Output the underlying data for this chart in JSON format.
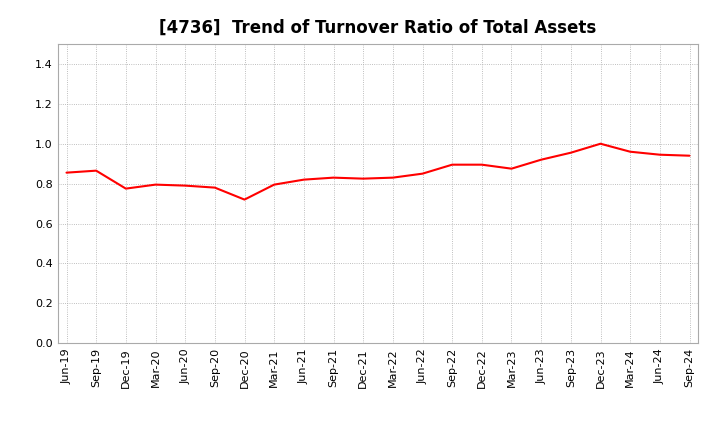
{
  "title": "[4736]  Trend of Turnover Ratio of Total Assets",
  "labels": [
    "Jun-19",
    "Sep-19",
    "Dec-19",
    "Mar-20",
    "Jun-20",
    "Sep-20",
    "Dec-20",
    "Mar-21",
    "Jun-21",
    "Sep-21",
    "Dec-21",
    "Mar-22",
    "Jun-22",
    "Sep-22",
    "Dec-22",
    "Mar-23",
    "Jun-23",
    "Sep-23",
    "Dec-23",
    "Mar-24",
    "Jun-24",
    "Sep-24"
  ],
  "values": [
    0.855,
    0.865,
    0.775,
    0.795,
    0.79,
    0.78,
    0.72,
    0.795,
    0.82,
    0.83,
    0.825,
    0.83,
    0.85,
    0.895,
    0.895,
    0.875,
    0.92,
    0.955,
    1.0,
    0.96,
    0.945,
    0.94
  ],
  "line_color": "#FF0000",
  "line_width": 1.5,
  "background_color": "#FFFFFF",
  "plot_bg_color": "#FFFFFF",
  "grid_color": "#AAAAAA",
  "ylim": [
    0.0,
    1.5
  ],
  "yticks": [
    0.0,
    0.2,
    0.4,
    0.6,
    0.8,
    1.0,
    1.2,
    1.4
  ],
  "title_fontsize": 12,
  "tick_fontsize": 8
}
